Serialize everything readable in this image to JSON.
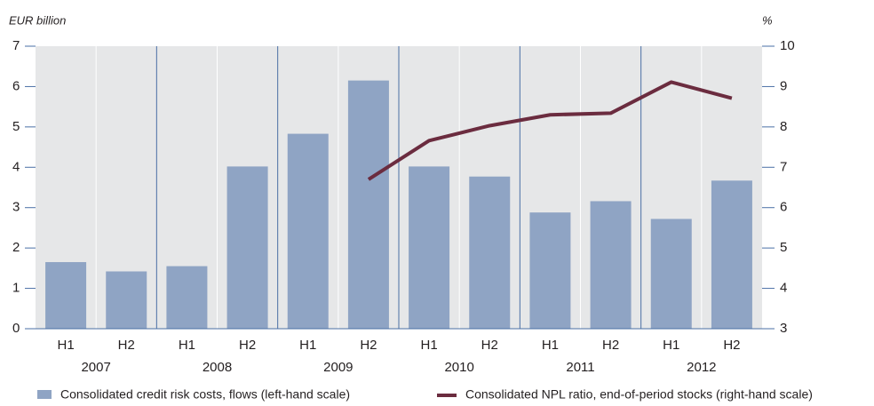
{
  "chart_data": {
    "type": "bar",
    "y_label": "EUR billion",
    "y2_label": "%",
    "categories": [
      "H1",
      "H2",
      "H1",
      "H2",
      "H1",
      "H2",
      "H1",
      "H2",
      "H1",
      "H2",
      "H1",
      "H2"
    ],
    "groups": [
      "2007",
      "2008",
      "2009",
      "2010",
      "2011",
      "2012"
    ],
    "series": [
      {
        "name": "Consolidated credit risk costs, flows (left-hand scale)",
        "type": "bar",
        "color": "#8fa4c4",
        "values": [
          1.65,
          1.42,
          1.55,
          4.02,
          4.83,
          6.15,
          4.02,
          3.77,
          2.88,
          3.16,
          2.72,
          3.67
        ]
      },
      {
        "name": "Consolidated NPL ratio, end-of-period stocks (right-hand scale)",
        "type": "line",
        "axis": "y2",
        "color": "#6b2c3f",
        "values": [
          null,
          null,
          null,
          null,
          null,
          6.7,
          7.66,
          8.03,
          8.3,
          8.34,
          9.11,
          8.71
        ]
      }
    ],
    "ylim": [
      0,
      7
    ],
    "yticks": [
      0,
      1,
      2,
      3,
      4,
      5,
      6,
      7
    ],
    "y2lim": [
      3,
      10
    ],
    "y2ticks": [
      3,
      4,
      5,
      6,
      7,
      8,
      9,
      10
    ],
    "background": "#e6e7e8"
  }
}
